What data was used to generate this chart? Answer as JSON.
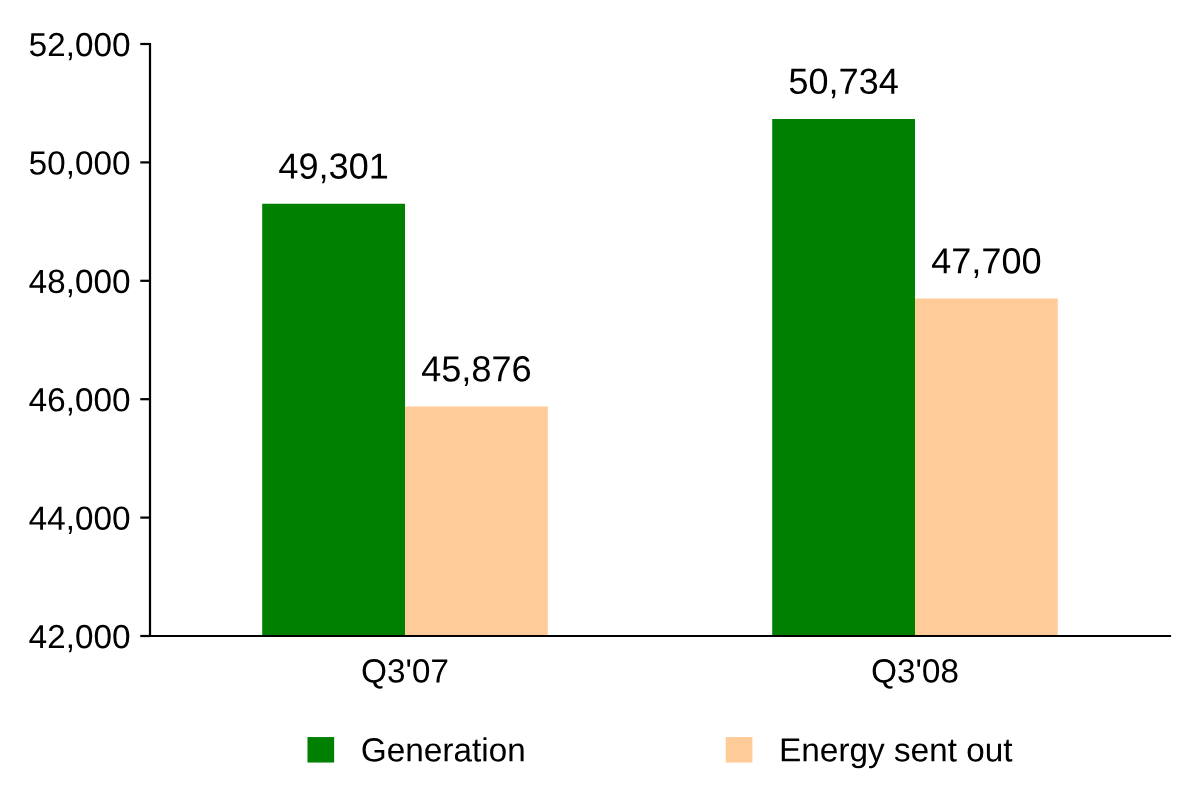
{
  "chart_data": {
    "type": "bar",
    "categories": [
      "Q3'07",
      "Q3'08"
    ],
    "series": [
      {
        "name": "Generation",
        "color": "#008000",
        "values": [
          49301,
          50734
        ],
        "value_labels": [
          "49,301",
          "50,734"
        ]
      },
      {
        "name": "Energy sent out",
        "color": "#ffcc99",
        "values": [
          45876,
          47700
        ],
        "value_labels": [
          "45,876",
          "47,700"
        ]
      }
    ],
    "ylim": [
      42000,
      52000
    ],
    "yticks": [
      {
        "value": 42000,
        "label": "42,000"
      },
      {
        "value": 44000,
        "label": "44,000"
      },
      {
        "value": 46000,
        "label": "46,000"
      },
      {
        "value": 48000,
        "label": "48,000"
      },
      {
        "value": 50000,
        "label": "50,000"
      },
      {
        "value": 52000,
        "label": "52,000"
      }
    ],
    "grid": false,
    "legend": "bottom"
  }
}
